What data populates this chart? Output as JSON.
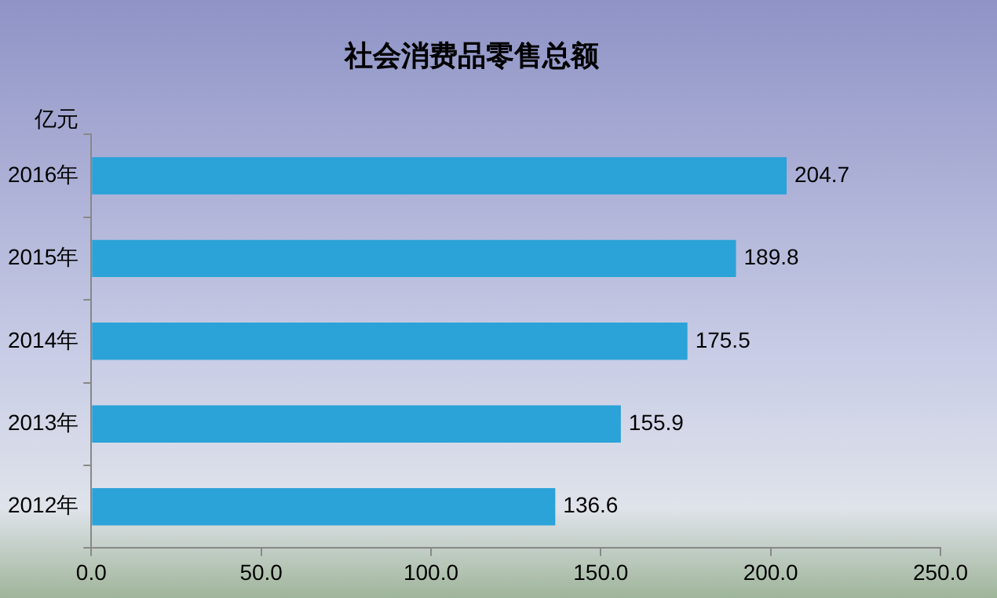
{
  "chart_data": {
    "type": "bar",
    "orientation": "horizontal",
    "title": "社会消费品零售总额",
    "ylabel": "亿元",
    "categories": [
      "2016年",
      "2015年",
      "2014年",
      "2013年",
      "2012年"
    ],
    "values": [
      204.7,
      189.8,
      175.5,
      155.9,
      136.6
    ],
    "color": "#2ba2d8",
    "xlim": [
      0,
      250
    ],
    "xticks": [
      {
        "value": 0,
        "label": "0.0"
      },
      {
        "value": 50,
        "label": "50.0"
      },
      {
        "value": 100,
        "label": "100.0"
      },
      {
        "value": 150,
        "label": "150.0"
      },
      {
        "value": 200,
        "label": "200.0"
      },
      {
        "value": 250,
        "label": "250.0"
      }
    ],
    "data_labels": true,
    "grid": false,
    "legend": false
  }
}
